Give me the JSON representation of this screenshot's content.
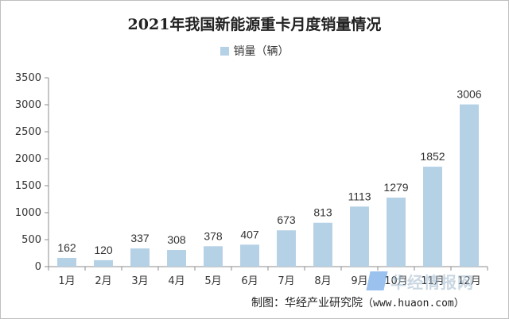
{
  "chart_data": {
    "type": "bar",
    "title": "2021年我国新能源重卡月度销量情况",
    "categories": [
      "1月",
      "2月",
      "3月",
      "4月",
      "5月",
      "6月",
      "7月",
      "8月",
      "9月",
      "10月",
      "11月",
      "12月"
    ],
    "series": [
      {
        "name": "销量（辆）",
        "values": [
          162,
          120,
          337,
          308,
          378,
          407,
          673,
          813,
          1113,
          1279,
          1852,
          3006
        ]
      }
    ],
    "ylim": [
      0,
      3500
    ],
    "yticks": [
      0,
      500,
      1000,
      1500,
      2000,
      2500,
      3000,
      3500
    ],
    "legend_position": "top-center",
    "grid": false,
    "bar_color": "#b5d1e6"
  },
  "source_note": {
    "prefix": "制图：华经产业研究院",
    "url": "（www.huaon.com）"
  },
  "watermark": {
    "text": "华经情报网"
  }
}
